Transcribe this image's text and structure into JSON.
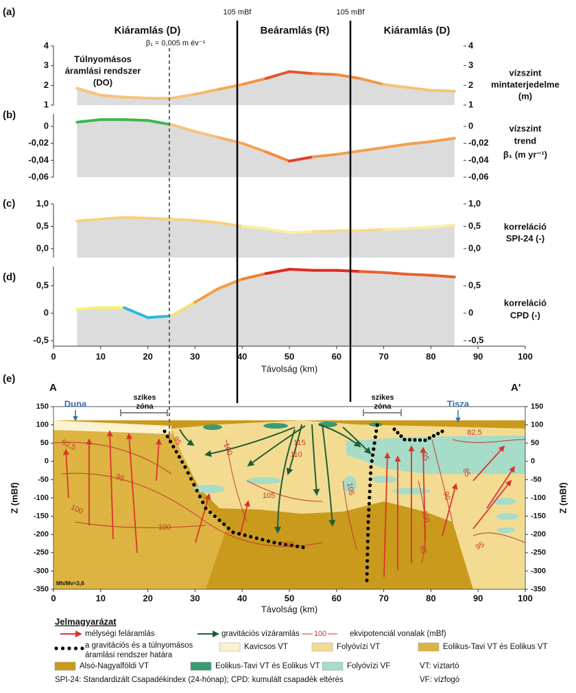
{
  "chart_data": [
    {
      "type": "area",
      "label": "(a)",
      "y_title": [
        "vízszint",
        "mintaterjedelme",
        "(m)"
      ],
      "x": [
        5,
        10,
        15,
        20,
        25,
        30,
        35,
        40,
        45,
        50,
        55,
        60,
        65,
        70,
        75,
        80,
        85
      ],
      "values": [
        1.85,
        1.5,
        1.4,
        1.35,
        1.35,
        1.55,
        1.8,
        2.05,
        2.35,
        2.7,
        2.6,
        2.55,
        2.35,
        2.05,
        1.9,
        1.75,
        1.7
      ],
      "segment_colors": [
        "#f6c37a",
        "#f6c37a",
        "#f6c37a",
        "#f6c37a",
        "#f6c37a",
        "#f6b766",
        "#f6a852",
        "#f29444",
        "#e2552c",
        "#e2552c",
        "#ec7a3a",
        "#ee8a3e",
        "#f09a48",
        "#f6c37a",
        "#f6c37a",
        "#f6c37a"
      ],
      "fill": "#dcdcdc",
      "xlim": [
        0,
        100
      ],
      "ylim": [
        1,
        4
      ],
      "yticks": [
        1,
        2,
        3,
        4
      ]
    },
    {
      "type": "area",
      "label": "(b)",
      "y_title": [
        "vízszint",
        "trend",
        "β₁ (m yr⁻¹)"
      ],
      "x": [
        5,
        10,
        15,
        20,
        25,
        30,
        35,
        40,
        45,
        50,
        55,
        60,
        65,
        70,
        75,
        80,
        85
      ],
      "values": [
        0.005,
        0.008,
        0.008,
        0.007,
        0.002,
        -0.006,
        -0.013,
        -0.02,
        -0.03,
        -0.041,
        -0.036,
        -0.033,
        -0.029,
        -0.025,
        -0.021,
        -0.018,
        -0.014
      ],
      "segment_colors": [
        "#3cb84a",
        "#3cb84a",
        "#3cb84a",
        "#3cb84a",
        "#f6c37a",
        "#f6c37a",
        "#f6b060",
        "#f6a050",
        "#f08a3c",
        "#e0402a",
        "#f09a48",
        "#f0a050",
        "#f0a050",
        "#f0a050",
        "#f0a050",
        "#f0a050"
      ],
      "fill": "#dcdcdc",
      "xlim": [
        0,
        100
      ],
      "ylim": [
        -0.06,
        0.015
      ],
      "yticks": [
        0,
        {
          "value": -0.02,
          "label": "-0,02"
        },
        {
          "value": -0.04,
          "label": "-0,04"
        },
        {
          "value": -0.06,
          "label": "-0,06"
        }
      ]
    },
    {
      "type": "area",
      "label": "(c)",
      "y_title": [
        "korreláció",
        "SPI-24 (-)"
      ],
      "x": [
        5,
        10,
        15,
        20,
        25,
        30,
        35,
        40,
        45,
        50,
        55,
        60,
        65,
        70,
        75,
        80,
        85
      ],
      "values": [
        0.62,
        0.66,
        0.7,
        0.68,
        0.66,
        0.63,
        0.58,
        0.5,
        0.45,
        0.36,
        0.38,
        0.4,
        0.4,
        0.43,
        0.45,
        0.48,
        0.53
      ],
      "segment_colors": [
        "#f8d080",
        "#f8d080",
        "#f8d080",
        "#f8d080",
        "#f8d080",
        "#f8d080",
        "#f8d080",
        "#fbeea0",
        "#fbeea0",
        "#fbeea0",
        "#f8d890",
        "#f8d890",
        "#f8d890",
        "#fbeea0",
        "#fbeea0",
        "#fbeea0"
      ],
      "fill": "#dcdcdc",
      "xlim": [
        0,
        100
      ],
      "ylim": [
        -0.2,
        1.0
      ],
      "yticks": [
        {
          "value": 1.0,
          "label": "1,0"
        },
        {
          "value": 0.5,
          "label": "0,5"
        },
        {
          "value": 0,
          "label": "0,0"
        }
      ]
    },
    {
      "type": "area",
      "label": "(d)",
      "y_title": [
        "korreláció",
        "CPD (-)"
      ],
      "x": [
        5,
        10,
        15,
        20,
        25,
        30,
        35,
        40,
        45,
        50,
        55,
        60,
        65,
        70,
        75,
        80,
        85
      ],
      "values": [
        0.07,
        0.1,
        0.1,
        -0.08,
        -0.05,
        0.2,
        0.45,
        0.62,
        0.72,
        0.8,
        0.78,
        0.78,
        0.76,
        0.74,
        0.71,
        0.69,
        0.66
      ],
      "segment_colors": [
        "#f8f070",
        "#f8f070",
        "#30b8e0",
        "#30b8e0",
        "#f8e070",
        "#f0a040",
        "#f0a040",
        "#f08030",
        "#e02a20",
        "#e02a20",
        "#e02a20",
        "#e02a20",
        "#e86030",
        "#e86030",
        "#e86030",
        "#e86030"
      ],
      "fill": "#dcdcdc",
      "xlim": [
        0,
        100
      ],
      "ylim": [
        -0.6,
        0.85
      ],
      "yticks": [
        {
          "value": 0.5,
          "label": "0,5"
        },
        0,
        {
          "value": -0.5,
          "label": "-0,5"
        }
      ],
      "xticks": [
        0,
        10,
        20,
        30,
        40,
        50,
        60,
        70,
        80,
        90,
        100
      ],
      "x_title": "Távolság (km)"
    }
  ],
  "annotations": {
    "level_label": "105 mBf",
    "zones": [
      "Kiáramlás (D)",
      "Beáramlás (R)",
      "Kiáramlás (D)"
    ],
    "beta": "β₁ = 0,005 m év⁻¹",
    "overpressure": [
      "Túlnyomásos",
      "áramlási rendszer",
      "(DO)"
    ]
  },
  "cross_section": {
    "label": "(e)",
    "point_a": "A",
    "point_b": "A'",
    "rivers": [
      "Duna",
      "Tisza"
    ],
    "zone_label": [
      "szikes",
      "zóna"
    ],
    "ratio": "Mh/Mv=3,6",
    "contour_labels": [
      "92,5",
      "95",
      "100",
      "100",
      "95",
      "100",
      "115",
      "110",
      "105",
      "100",
      "105",
      "95",
      "90",
      "100",
      "95",
      "95",
      "85",
      "82,5"
    ],
    "xlim": [
      0,
      100
    ],
    "xticks": [
      0,
      10,
      20,
      30,
      40,
      50,
      60,
      70,
      80,
      90,
      100
    ],
    "x_title": "Távolság (km)",
    "ylim": [
      -350,
      150
    ],
    "yticks": [
      150,
      100,
      50,
      0,
      -50,
      -100,
      -150,
      -200,
      -250,
      -300,
      -350
    ],
    "y_title": "Z (mBf)"
  },
  "legend": {
    "title": "Jelmagyarázat",
    "upflow": "mélységi feláramlás",
    "gravity_flow": "gravitációs vízáramlás",
    "contour_sample": "100",
    "contours": "ekvipotenciál vonalak (mBf)",
    "boundary": [
      "a gravitációs és a túlnyomásos",
      "áramlási rendszer határa"
    ],
    "units": [
      "Kavicsos VT",
      "Folyóvízi VT",
      "Eolikus-Tavi VT és Eolikus VT",
      "Alsó-Nagyalföldi VT",
      "Eolikus-Tavi VT és Eolikus VT",
      "Folyóvízi VF"
    ],
    "abbrev": [
      "VT: víztartó",
      "VF: vízfogó"
    ],
    "note": "SPI-24: Standardizált Csapadékindex (24-hónap); CPD: kumulált csapadék eltérés"
  }
}
